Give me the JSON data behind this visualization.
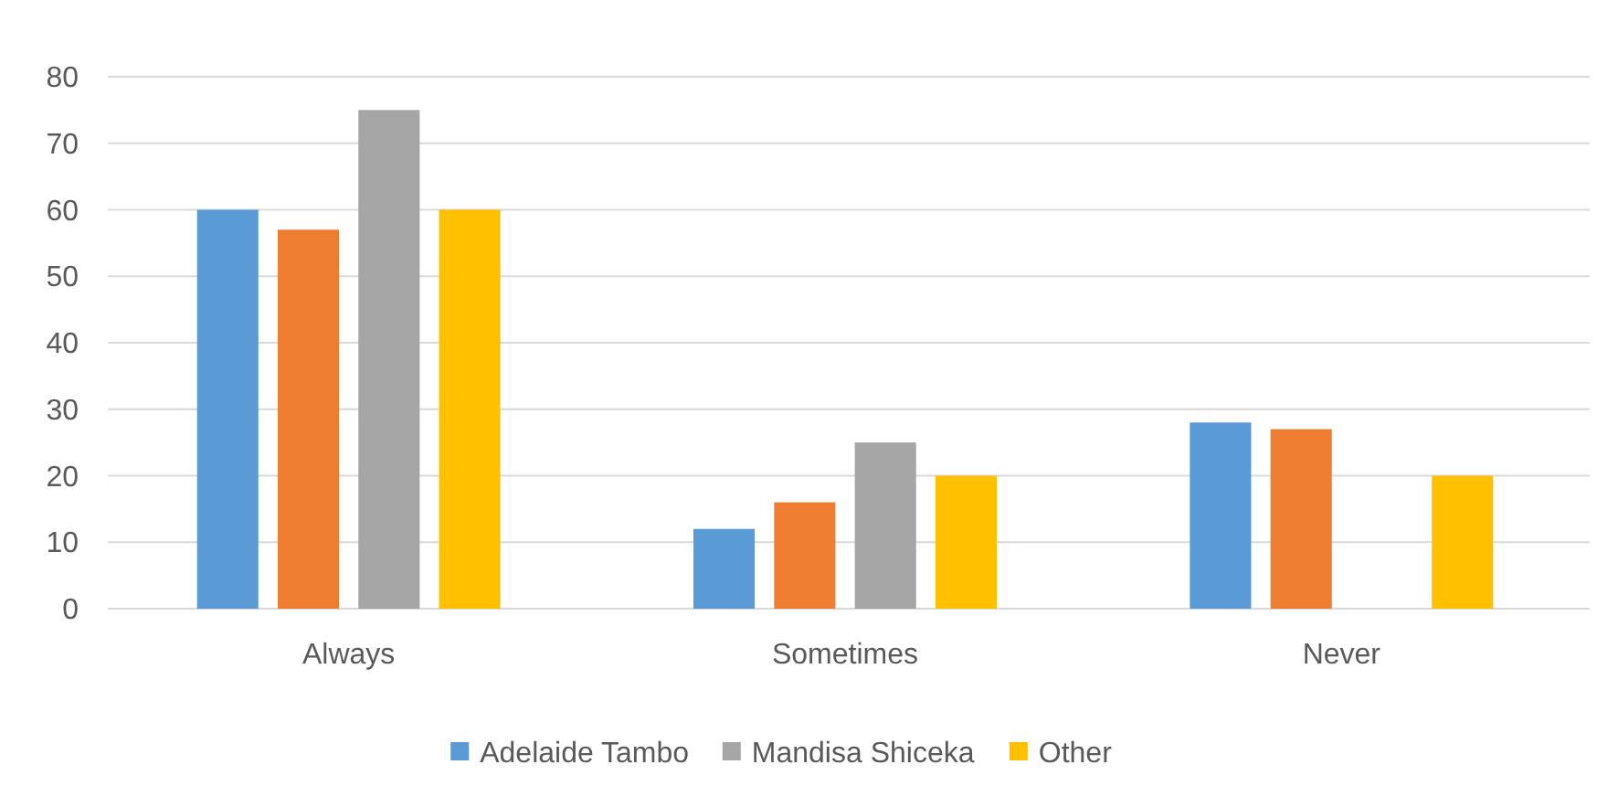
{
  "chart_data": {
    "type": "bar",
    "categories": [
      "Always",
      "Sometimes",
      "Never"
    ],
    "series": [
      {
        "name": "Adelaide Tambo",
        "color": "#5b9bd5",
        "values": [
          60,
          12,
          28
        ]
      },
      {
        "color": "#ed7d31",
        "values": [
          57,
          16,
          27
        ]
      },
      {
        "name": "Mandisa Shiceka",
        "color": "#a5a5a5",
        "values": [
          75,
          25,
          0
        ]
      },
      {
        "name": "Other",
        "color": "#ffc000",
        "values": [
          60,
          20,
          20
        ]
      }
    ],
    "ylim": [
      0,
      80
    ],
    "yticks": [
      0,
      10,
      20,
      30,
      40,
      50,
      60,
      70,
      80
    ],
    "grid": "y",
    "legend": "bottom"
  }
}
